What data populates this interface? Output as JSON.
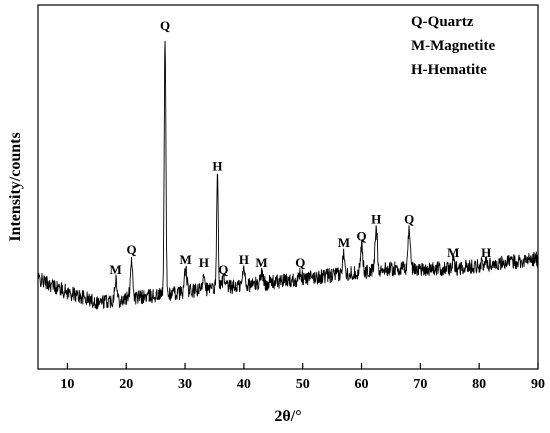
{
  "chart_data": {
    "type": "line",
    "title": "",
    "xlabel": "2θ/°",
    "ylabel": "Intensity/counts",
    "xlim": [
      5,
      90
    ],
    "x_ticks": [
      10,
      20,
      30,
      40,
      50,
      60,
      70,
      80,
      90
    ],
    "y_ticks_shown": false,
    "grid": false,
    "line_color": "#000000",
    "legend": {
      "placement": "top-right",
      "entries": [
        "Q-Quartz",
        "M-Magnetite",
        "H-Hematite"
      ]
    },
    "baseline": [
      [
        5,
        0.27
      ],
      [
        10,
        0.23
      ],
      [
        15,
        0.2
      ],
      [
        20,
        0.21
      ],
      [
        25,
        0.22
      ],
      [
        30,
        0.23
      ],
      [
        35,
        0.24
      ],
      [
        40,
        0.25
      ],
      [
        45,
        0.26
      ],
      [
        50,
        0.27
      ],
      [
        55,
        0.28
      ],
      [
        60,
        0.29
      ],
      [
        65,
        0.3
      ],
      [
        70,
        0.3
      ],
      [
        75,
        0.3
      ],
      [
        80,
        0.31
      ],
      [
        85,
        0.32
      ],
      [
        90,
        0.33
      ]
    ],
    "peaks": [
      {
        "x": 18.2,
        "y": 0.27,
        "label": "M"
      },
      {
        "x": 20.9,
        "y": 0.33,
        "label": "Q"
      },
      {
        "x": 26.6,
        "y": 1.0,
        "label": "Q"
      },
      {
        "x": 30.1,
        "y": 0.3,
        "label": "M"
      },
      {
        "x": 33.2,
        "y": 0.29,
        "label": "H"
      },
      {
        "x": 35.5,
        "y": 0.58,
        "label": "H"
      },
      {
        "x": 36.5,
        "y": 0.27,
        "label": "Q"
      },
      {
        "x": 40.0,
        "y": 0.3,
        "label": "H"
      },
      {
        "x": 43.0,
        "y": 0.29,
        "label": "M"
      },
      {
        "x": 49.6,
        "y": 0.29,
        "label": "Q"
      },
      {
        "x": 57.0,
        "y": 0.35,
        "label": "M"
      },
      {
        "x": 60.0,
        "y": 0.37,
        "label": "Q"
      },
      {
        "x": 62.5,
        "y": 0.42,
        "label": "H"
      },
      {
        "x": 68.1,
        "y": 0.42,
        "label": "Q"
      },
      {
        "x": 75.6,
        "y": 0.32,
        "label": "M"
      },
      {
        "x": 81.2,
        "y": 0.32,
        "label": "H"
      }
    ]
  }
}
